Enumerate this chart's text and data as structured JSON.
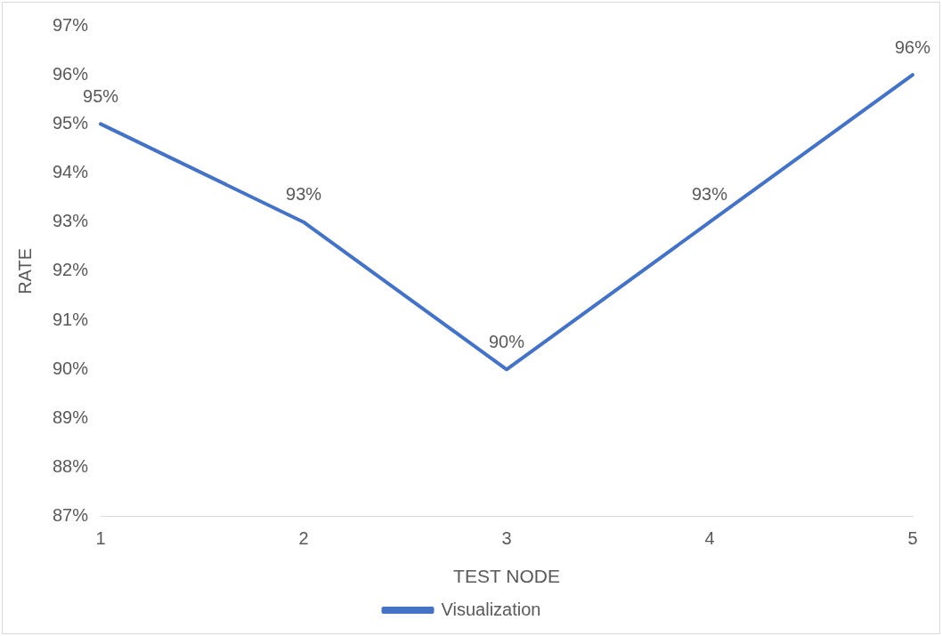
{
  "chart_data": {
    "type": "line",
    "xlabel": "TEST NODE",
    "ylabel": "RATE",
    "categories": [
      "1",
      "2",
      "3",
      "4",
      "5"
    ],
    "series": [
      {
        "name": "Visualization",
        "color": "#4472c4",
        "values": [
          95,
          93,
          90,
          93,
          96
        ],
        "value_labels": [
          "95%",
          "93%",
          "90%",
          "93%",
          "96%"
        ]
      }
    ],
    "ylim": [
      87,
      97
    ],
    "yticks": [
      {
        "value": 87,
        "label": "87%"
      },
      {
        "value": 88,
        "label": "88%"
      },
      {
        "value": 89,
        "label": "89%"
      },
      {
        "value": 90,
        "label": "90%"
      },
      {
        "value": 91,
        "label": "91%"
      },
      {
        "value": 92,
        "label": "92%"
      },
      {
        "value": 93,
        "label": "93%"
      },
      {
        "value": 94,
        "label": "94%"
      },
      {
        "value": 95,
        "label": "95%"
      },
      {
        "value": 96,
        "label": "96%"
      },
      {
        "value": 97,
        "label": "97%"
      }
    ],
    "grid": false,
    "legend": "bottom",
    "marker": "none",
    "line_style": "solid"
  }
}
